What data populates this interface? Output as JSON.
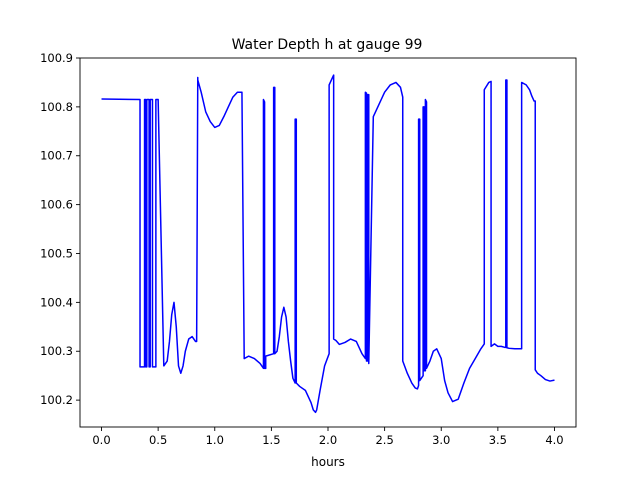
{
  "chart_data": {
    "type": "line",
    "title": "Water Depth h at gauge 99",
    "xlabel": "hours",
    "ylabel": "",
    "xlim": [
      -0.19,
      4.19
    ],
    "ylim": [
      100.145,
      100.9
    ],
    "x_ticks": [
      0.0,
      0.5,
      1.0,
      1.5,
      2.0,
      2.5,
      3.0,
      3.5,
      4.0
    ],
    "x_tick_labels": [
      "0.0",
      "0.5",
      "1.0",
      "1.5",
      "2.0",
      "2.5",
      "3.0",
      "3.5",
      "4.0"
    ],
    "y_ticks": [
      100.2,
      100.3,
      100.4,
      100.5,
      100.6,
      100.7,
      100.8,
      100.9
    ],
    "y_tick_labels": [
      "100.2",
      "100.3",
      "100.4",
      "100.5",
      "100.6",
      "100.7",
      "100.8",
      "100.9"
    ],
    "grid": false,
    "line_color": "#0000ff",
    "series": [
      {
        "x": [
          0.0,
          0.34,
          0.34,
          0.38,
          0.38,
          0.39,
          0.39,
          0.4,
          0.4,
          0.42,
          0.42,
          0.43,
          0.43,
          0.45,
          0.45,
          0.48,
          0.48,
          0.5,
          0.55,
          0.58,
          0.6,
          0.62,
          0.64,
          0.66,
          0.68,
          0.7,
          0.72,
          0.74,
          0.77,
          0.8,
          0.83,
          0.84,
          0.85,
          0.85,
          0.88,
          0.92,
          0.96,
          1.0,
          1.04,
          1.08,
          1.12,
          1.16,
          1.2,
          1.24,
          1.26,
          1.26,
          1.3,
          1.35,
          1.4,
          1.43,
          1.43,
          1.44,
          1.44,
          1.45,
          1.45,
          1.52,
          1.52,
          1.53,
          1.53,
          1.55,
          1.57,
          1.59,
          1.61,
          1.63,
          1.65,
          1.67,
          1.69,
          1.71,
          1.71,
          1.72,
          1.72,
          1.75,
          1.8,
          1.85,
          1.87,
          1.89,
          1.9,
          1.93,
          1.97,
          2.01,
          2.01,
          2.03,
          2.05,
          2.05,
          2.07,
          2.1,
          2.15,
          2.2,
          2.25,
          2.3,
          2.33,
          2.33,
          2.34,
          2.34,
          2.35,
          2.35,
          2.36,
          2.36,
          2.4,
          2.45,
          2.5,
          2.55,
          2.6,
          2.64,
          2.66,
          2.66,
          2.7,
          2.74,
          2.77,
          2.79,
          2.8,
          2.8,
          2.81,
          2.81,
          2.84,
          2.84,
          2.85,
          2.85,
          2.86,
          2.86,
          2.87,
          2.87,
          2.9,
          2.93,
          2.96,
          3.0,
          3.03,
          3.06,
          3.1,
          3.15,
          3.2,
          3.25,
          3.3,
          3.35,
          3.38,
          3.38,
          3.42,
          3.44,
          3.44,
          3.47,
          3.5,
          3.53,
          3.56,
          3.57,
          3.57,
          3.58,
          3.58,
          3.6,
          3.65,
          3.7,
          3.71,
          3.71,
          3.75,
          3.78,
          3.8,
          3.82,
          3.83,
          3.83,
          3.85,
          3.88,
          3.92,
          3.96,
          4.0
        ],
        "y": [
          100.816,
          100.815,
          100.268,
          100.268,
          100.815,
          100.815,
          100.268,
          100.268,
          100.815,
          100.815,
          100.268,
          100.268,
          100.815,
          100.815,
          100.268,
          100.268,
          100.815,
          100.815,
          100.27,
          100.28,
          100.32,
          100.375,
          100.4,
          100.35,
          100.27,
          100.255,
          100.27,
          100.3,
          100.325,
          100.33,
          100.32,
          100.32,
          100.86,
          100.855,
          100.83,
          100.79,
          100.77,
          100.758,
          100.762,
          100.78,
          100.8,
          100.82,
          100.83,
          100.83,
          100.285,
          100.285,
          100.29,
          100.285,
          100.275,
          100.265,
          100.815,
          100.81,
          100.265,
          100.265,
          100.29,
          100.295,
          100.84,
          100.84,
          100.295,
          100.3,
          100.33,
          100.37,
          100.39,
          100.37,
          100.32,
          100.28,
          100.245,
          100.235,
          100.775,
          100.775,
          100.235,
          100.228,
          100.22,
          100.195,
          100.18,
          100.175,
          100.18,
          100.22,
          100.27,
          100.295,
          100.845,
          100.855,
          100.865,
          100.325,
          100.322,
          100.314,
          100.318,
          100.325,
          100.32,
          100.295,
          100.285,
          100.83,
          100.828,
          100.28,
          100.28,
          100.825,
          100.825,
          100.275,
          100.78,
          100.805,
          100.83,
          100.845,
          100.85,
          100.84,
          100.82,
          100.28,
          100.255,
          100.235,
          100.225,
          100.223,
          100.23,
          100.775,
          100.775,
          100.24,
          100.25,
          100.8,
          100.8,
          100.26,
          100.26,
          100.815,
          100.81,
          100.265,
          100.28,
          100.3,
          100.305,
          100.285,
          100.24,
          100.215,
          100.197,
          100.202,
          100.235,
          100.265,
          100.285,
          100.305,
          100.315,
          100.835,
          100.85,
          100.852,
          100.31,
          100.315,
          100.31,
          100.31,
          100.308,
          100.308,
          100.855,
          100.855,
          100.307,
          100.306,
          100.305,
          100.305,
          100.305,
          100.85,
          100.845,
          100.835,
          100.822,
          100.812,
          100.812,
          100.262,
          100.255,
          100.25,
          100.242,
          100.239,
          100.241
        ]
      }
    ]
  }
}
